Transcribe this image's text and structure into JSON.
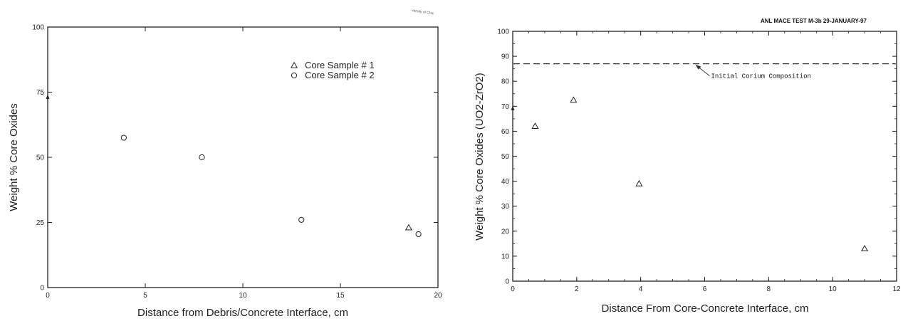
{
  "chart_data": [
    {
      "type": "scatter",
      "title": "",
      "stamp": "versity of Chic",
      "xlabel": "Distance from Debris/Concrete Interface, cm",
      "ylabel": "Weight % Core Oxides",
      "xlim": [
        0,
        20
      ],
      "ylim": [
        0,
        100
      ],
      "xticks": [
        "0",
        "5",
        "10",
        "15",
        "20"
      ],
      "yticks": [
        "0",
        "25",
        "50",
        "75",
        "100"
      ],
      "grid": false,
      "legend_position": "top-right",
      "series": [
        {
          "name": "Core Sample # 1",
          "marker": "triangle",
          "points": [
            [
              18.5,
              23
            ]
          ]
        },
        {
          "name": "Core Sample # 2",
          "marker": "circle",
          "points": [
            [
              3.9,
              57.5
            ],
            [
              7.9,
              50
            ],
            [
              13,
              26
            ],
            [
              19,
              20.5
            ]
          ]
        }
      ],
      "axis_marks": [
        {
          "axis": "y",
          "value": 73
        }
      ]
    },
    {
      "type": "scatter",
      "title": "ANL MACE TEST M-3b  29-JANUARY-97",
      "xlabel": "Distance From Core-Concrete Interface, cm",
      "ylabel": "Weight % Core Oxides (UO2-ZrO2)",
      "xlim": [
        0,
        12
      ],
      "ylim": [
        0,
        100
      ],
      "xticks": [
        "0",
        "2",
        "4",
        "6",
        "8",
        "10",
        "12"
      ],
      "yticks": [
        "0",
        "10",
        "20",
        "30",
        "40",
        "50",
        "60",
        "70",
        "80",
        "90",
        "100"
      ],
      "grid": false,
      "series": [
        {
          "name": "",
          "marker": "triangle",
          "points": [
            [
              0.7,
              62
            ],
            [
              1.9,
              72.5
            ],
            [
              3.95,
              39
            ],
            [
              11,
              13
            ]
          ]
        }
      ],
      "reference_line": {
        "y": 87,
        "style": "dashed",
        "label": "Initial Corium Composition",
        "label_x": 6.2
      },
      "axis_marks": [
        {
          "axis": "y",
          "value": 69
        }
      ]
    }
  ]
}
